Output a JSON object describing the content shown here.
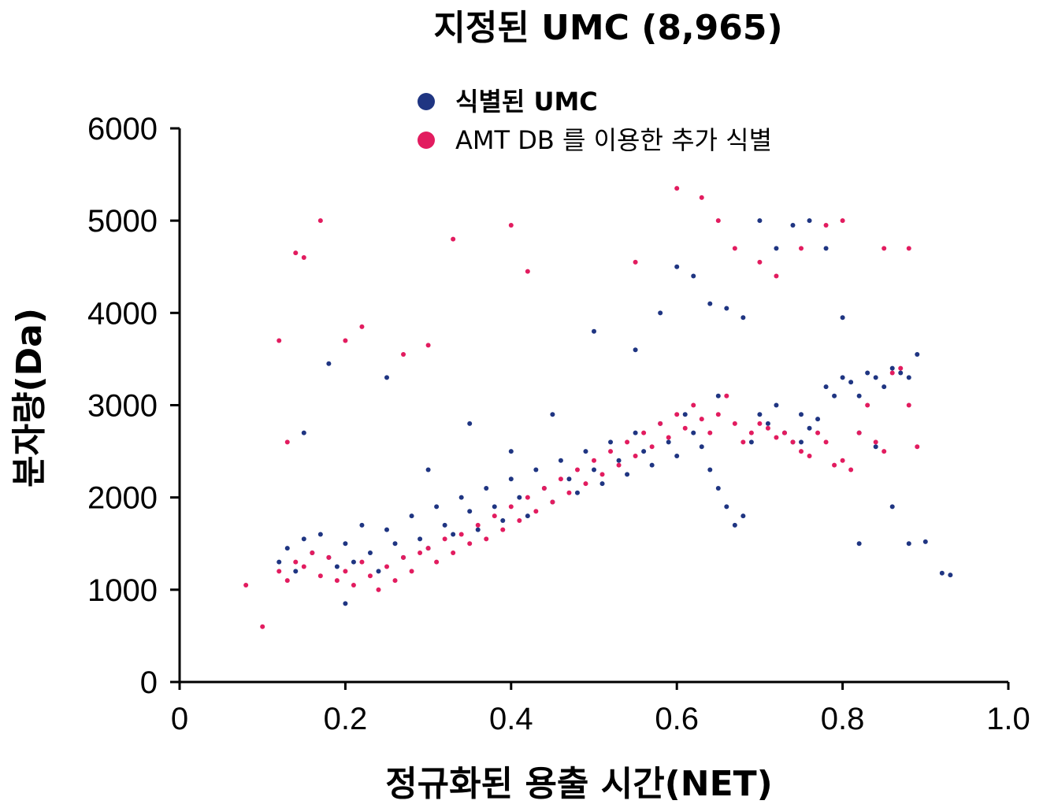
{
  "chart_data": {
    "type": "scatter",
    "title": "지정된 UMC (8,965)",
    "xlabel": "정규화된 용출 시간(NET)",
    "ylabel": "분자량(Da)",
    "xlim": [
      0,
      1.0
    ],
    "ylim": [
      0,
      6000
    ],
    "x_ticks": [
      "0",
      "0.2",
      "0.4",
      "0.6",
      "0.8",
      "1.0"
    ],
    "x_tick_values": [
      0,
      0.2,
      0.4,
      0.6,
      0.8,
      1.0
    ],
    "y_ticks": [
      "0",
      "1000",
      "2000",
      "3000",
      "4000",
      "5000",
      "6000"
    ],
    "y_tick_values": [
      0,
      1000,
      2000,
      3000,
      4000,
      5000,
      6000
    ],
    "grid": false,
    "legend_position": "top",
    "series": [
      {
        "name": "식별된 UMC",
        "color": "#1f3582",
        "x": [
          0.12,
          0.13,
          0.14,
          0.15,
          0.16,
          0.17,
          0.18,
          0.19,
          0.2,
          0.21,
          0.22,
          0.23,
          0.24,
          0.25,
          0.26,
          0.27,
          0.28,
          0.29,
          0.3,
          0.31,
          0.32,
          0.33,
          0.34,
          0.35,
          0.36,
          0.37,
          0.38,
          0.39,
          0.4,
          0.41,
          0.42,
          0.43,
          0.44,
          0.45,
          0.46,
          0.47,
          0.48,
          0.49,
          0.5,
          0.51,
          0.52,
          0.53,
          0.54,
          0.55,
          0.56,
          0.57,
          0.58,
          0.59,
          0.6,
          0.61,
          0.62,
          0.63,
          0.64,
          0.65,
          0.66,
          0.67,
          0.68,
          0.69,
          0.7,
          0.71,
          0.72,
          0.73,
          0.74,
          0.75,
          0.76,
          0.77,
          0.78,
          0.79,
          0.8,
          0.81,
          0.82,
          0.83,
          0.84,
          0.85,
          0.86,
          0.87,
          0.88,
          0.89,
          0.6,
          0.62,
          0.64,
          0.66,
          0.68,
          0.7,
          0.72,
          0.74,
          0.76,
          0.78,
          0.8,
          0.82,
          0.84,
          0.86,
          0.88,
          0.9,
          0.92,
          0.93,
          0.25,
          0.18,
          0.15,
          0.55,
          0.58,
          0.45,
          0.5,
          0.65,
          0.75,
          0.82,
          0.2,
          0.3,
          0.35,
          0.4
        ],
        "y": [
          1300,
          1450,
          1200,
          1550,
          1400,
          1600,
          1350,
          1250,
          1500,
          1300,
          1700,
          1400,
          1200,
          1650,
          1500,
          1350,
          1800,
          1550,
          1450,
          1900,
          1700,
          1600,
          2000,
          1850,
          1650,
          2100,
          1900,
          1750,
          2200,
          2000,
          1800,
          2300,
          2100,
          1950,
          2400,
          2200,
          2050,
          2500,
          2300,
          2150,
          2600,
          2400,
          2250,
          2700,
          2500,
          2350,
          2800,
          2600,
          2450,
          2900,
          2700,
          2550,
          2300,
          2100,
          1900,
          1700,
          1800,
          2600,
          2900,
          2800,
          3000,
          2700,
          2600,
          2900,
          2750,
          2850,
          3200,
          3100,
          3300,
          3250,
          3100,
          3350,
          3300,
          3200,
          3400,
          3350,
          3300,
          3550,
          4500,
          4400,
          4100,
          4050,
          3950,
          5000,
          4700,
          4950,
          5000,
          4700,
          3950,
          2700,
          2550,
          1900,
          1500,
          1520,
          1180,
          1160,
          3300,
          3450,
          2700,
          3600,
          4000,
          2900,
          3800,
          3100,
          2600,
          1500,
          850,
          2300,
          2800,
          2500
        ],
        "marker_size": 3
      },
      {
        "name": "AMT DB 를 이용한 추가 식별",
        "color": "#e21c5f",
        "x": [
          0.08,
          0.1,
          0.12,
          0.13,
          0.14,
          0.15,
          0.16,
          0.17,
          0.18,
          0.19,
          0.2,
          0.21,
          0.22,
          0.23,
          0.24,
          0.25,
          0.26,
          0.27,
          0.28,
          0.29,
          0.3,
          0.31,
          0.32,
          0.33,
          0.34,
          0.35,
          0.36,
          0.37,
          0.38,
          0.39,
          0.4,
          0.41,
          0.42,
          0.43,
          0.44,
          0.45,
          0.46,
          0.47,
          0.48,
          0.49,
          0.5,
          0.51,
          0.52,
          0.53,
          0.54,
          0.55,
          0.56,
          0.57,
          0.58,
          0.59,
          0.6,
          0.61,
          0.62,
          0.63,
          0.64,
          0.65,
          0.66,
          0.67,
          0.68,
          0.69,
          0.7,
          0.71,
          0.72,
          0.73,
          0.74,
          0.75,
          0.76,
          0.77,
          0.78,
          0.79,
          0.8,
          0.81,
          0.82,
          0.83,
          0.84,
          0.85,
          0.86,
          0.87,
          0.88,
          0.89,
          0.14,
          0.15,
          0.17,
          0.2,
          0.22,
          0.33,
          0.4,
          0.42,
          0.55,
          0.6,
          0.63,
          0.65,
          0.67,
          0.7,
          0.72,
          0.75,
          0.78,
          0.8,
          0.85,
          0.88,
          0.12,
          0.13,
          0.3,
          0.27
        ],
        "y": [
          1050,
          600,
          1200,
          1100,
          1300,
          1250,
          1400,
          1150,
          1350,
          1100,
          1200,
          1050,
          1300,
          1150,
          1000,
          1250,
          1100,
          1350,
          1200,
          1400,
          1450,
          1300,
          1550,
          1400,
          1600,
          1500,
          1700,
          1550,
          1800,
          1650,
          1900,
          1750,
          2000,
          1850,
          2100,
          1950,
          2200,
          2050,
          2300,
          2150,
          2400,
          2250,
          2500,
          2350,
          2600,
          2450,
          2700,
          2550,
          2800,
          2650,
          2900,
          2750,
          3000,
          2850,
          2700,
          2900,
          3100,
          2800,
          2600,
          2700,
          2800,
          2750,
          2650,
          2700,
          2600,
          2500,
          2450,
          2700,
          2600,
          2350,
          2400,
          2300,
          2700,
          3000,
          2600,
          2500,
          3350,
          3400,
          3000,
          2550,
          4650,
          4600,
          5000,
          3700,
          3850,
          4800,
          4950,
          4450,
          4550,
          5350,
          5250,
          5000,
          4700,
          4550,
          4400,
          4700,
          4950,
          5000,
          4700,
          4700,
          3700,
          2600,
          3650,
          3550
        ],
        "marker_size": 3
      }
    ]
  }
}
